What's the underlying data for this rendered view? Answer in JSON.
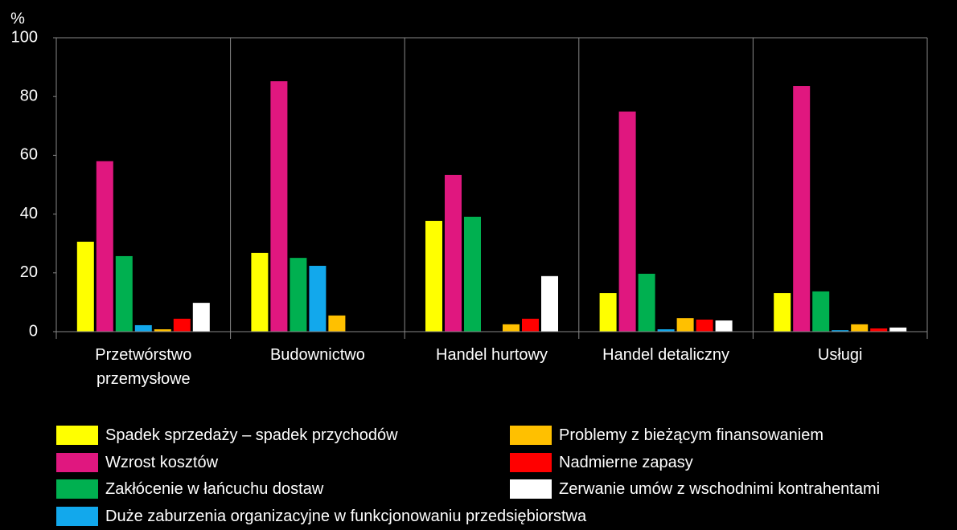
{
  "chart_data": {
    "type": "bar",
    "y_label": "%",
    "categories": [
      "Przetwórstwo przemysłowe",
      "Budownictwo",
      "Handel hurtowy",
      "Handel detaliczny",
      "Usługi"
    ],
    "series": [
      {
        "name": "Spadek sprzedaży – spadek przychodów",
        "color": "#ffff00",
        "values": [
          30.6,
          26.8,
          37.7,
          13.1,
          13.1
        ]
      },
      {
        "name": "Wzrost kosztów",
        "color": "#e0177f",
        "values": [
          58,
          85.2,
          53.3,
          74.9,
          83.6
        ]
      },
      {
        "name": "Zakłócenie w łańcuchu dostaw",
        "color": "#00b050",
        "values": [
          25.7,
          25.1,
          39.1,
          19.7,
          13.7
        ]
      },
      {
        "name": "Duże zaburzenia organizacyjne w funkcjonowaniu przedsiębiorstwa",
        "color": "#12a8ec",
        "values": [
          2.2,
          22.4,
          0,
          0.8,
          0.5
        ]
      },
      {
        "name": "Problemy z bieżącym finansowaniem",
        "color": "#ffc000",
        "values": [
          0.8,
          5.5,
          2.5,
          4.6,
          2.5
        ]
      },
      {
        "name": "Nadmierne zapasy",
        "color": "#ff0000",
        "values": [
          4.4,
          0,
          4.4,
          4.1,
          1.1
        ]
      },
      {
        "name": "Zerwanie umów z wschodnimi kontrahentami",
        "color": "#ffffff",
        "values": [
          9.8,
          0,
          18.9,
          3.8,
          1.4
        ]
      }
    ],
    "ylim": [
      0,
      100
    ],
    "yticks": [
      0,
      20,
      40,
      60,
      80,
      100
    ],
    "grid": false,
    "legend": "bottom"
  }
}
